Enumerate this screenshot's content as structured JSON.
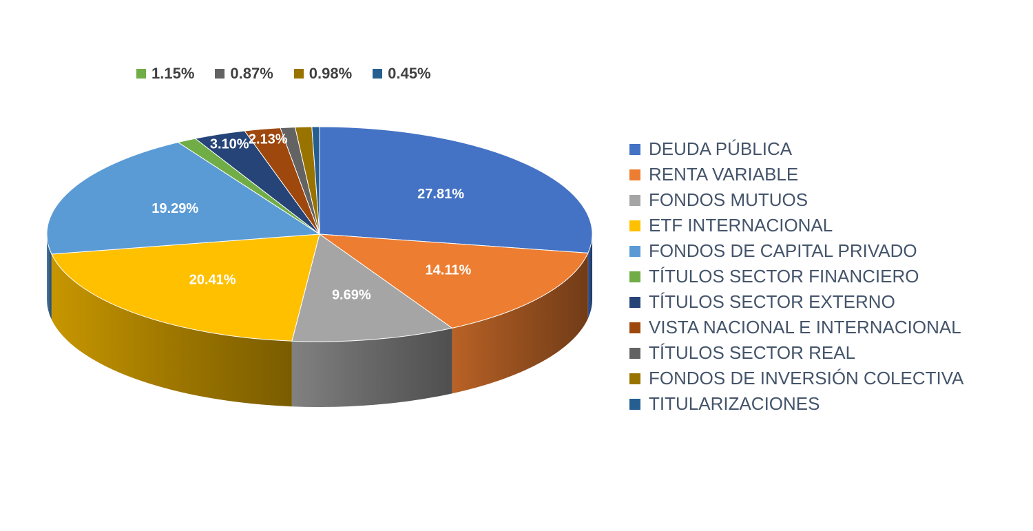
{
  "chart_data": {
    "type": "pie",
    "style": "3d",
    "categories": [
      "DEUDA PÚBLICA",
      "RENTA VARIABLE",
      "FONDOS MUTUOS",
      "ETF INTERNACIONAL",
      "FONDOS DE CAPITAL PRIVADO",
      "TÍTULOS SECTOR FINANCIERO",
      "TÍTULOS SECTOR EXTERNO",
      "VISTA NACIONAL E INTERNACIONAL",
      "TÍTULOS SECTOR REAL",
      "FONDOS DE INVERSIÓN COLECTIVA",
      "TITULARIZACIONES"
    ],
    "values": [
      27.81,
      14.11,
      9.69,
      20.41,
      19.29,
      1.15,
      3.1,
      2.13,
      0.87,
      0.98,
      0.45
    ],
    "labels": [
      "27.81%",
      "14.11%",
      "9.69%",
      "20.41%",
      "19.29%",
      "1.15%",
      "3.10%",
      "2.13%",
      "0.87%",
      "0.98%",
      "0.45%"
    ],
    "colors": [
      "#4472c4",
      "#ed7d31",
      "#a5a5a5",
      "#ffc000",
      "#5b9bd5",
      "#70ad47",
      "#264478",
      "#9e480e",
      "#636363",
      "#997300",
      "#255e91"
    ],
    "small_labels_in_top_legend": [
      5,
      8,
      9,
      10
    ],
    "legend_position": "right",
    "title": "",
    "start_angle_deg": 90,
    "direction": "clockwise"
  }
}
